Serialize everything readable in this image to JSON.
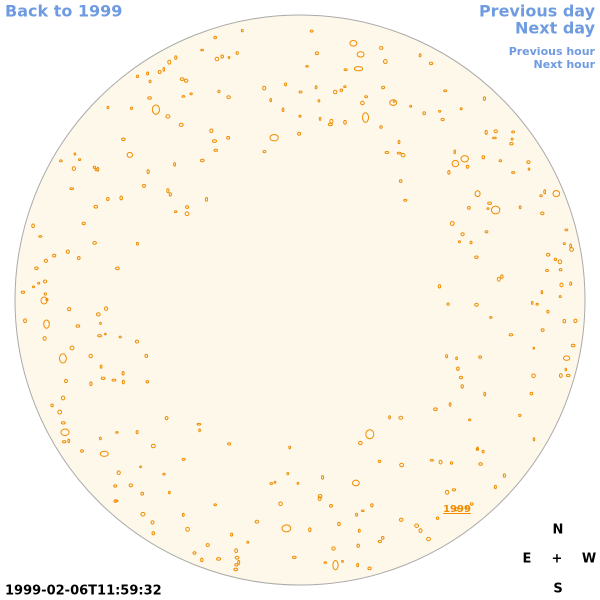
{
  "links": {
    "back": "Back to 1999",
    "previous_day": "Previous day",
    "next_day": "Next day",
    "previous_hour": "Previous hour",
    "next_hour": "Next hour"
  },
  "map": {
    "label": "1999"
  },
  "compass": {
    "north": "N",
    "east": "E",
    "center": "+",
    "west": "W",
    "south": "S"
  },
  "timestamp": "1999-02-06T11:59:32"
}
